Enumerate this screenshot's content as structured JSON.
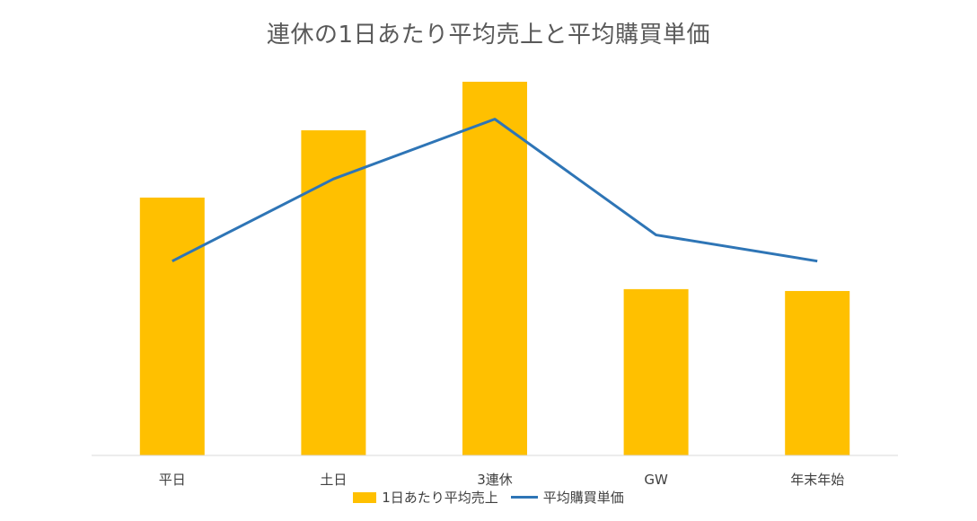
{
  "chart_data": {
    "type": "bar",
    "title": "連休の1日あたり平均売上と平均購買単価",
    "categories": [
      "平日",
      "土日",
      "3連休",
      "GW",
      "年末年始"
    ],
    "series": [
      {
        "name": "1日あたり平均売上",
        "type": "bar",
        "color": "#FFC000",
        "values": [
          69,
          87,
          100,
          44.5,
          44
        ]
      },
      {
        "name": "平均購買単価",
        "type": "line",
        "color": "#2E75B6",
        "values": [
          52,
          74,
          90,
          59,
          52
        ]
      }
    ],
    "ylim": [
      0,
      100
    ],
    "legend": "bottom",
    "grid": false,
    "xlabel": "",
    "ylabel": ""
  }
}
